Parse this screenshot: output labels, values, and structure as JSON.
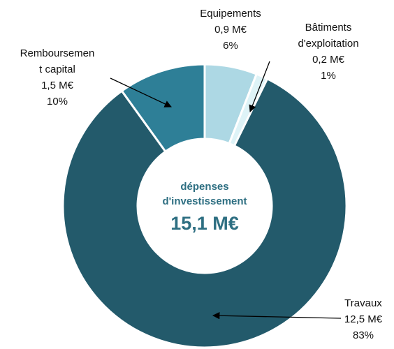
{
  "chart_data": {
    "type": "donut",
    "categories": [
      [
        "Equipements"
      ],
      [
        "Bâtiments",
        "d'exploitation"
      ],
      [
        "Travaux"
      ],
      [
        "Remboursemen",
        "t capital"
      ]
    ],
    "values": [
      0.9,
      0.2,
      12.5,
      1.5
    ],
    "value_labels": [
      "0,9 M€",
      "0,2 M€",
      "12,5 M€",
      "1,5 M€"
    ],
    "shares": [
      6,
      1,
      83,
      10
    ],
    "share_labels": [
      "6%",
      "1%",
      "83%",
      "10%"
    ],
    "colors": [
      "#add8e4",
      "#def3f7",
      "#235a6b",
      "#2e7f97"
    ],
    "center_label": [
      "dépenses",
      "d'investissement"
    ],
    "total_label": "15,1 M€"
  }
}
